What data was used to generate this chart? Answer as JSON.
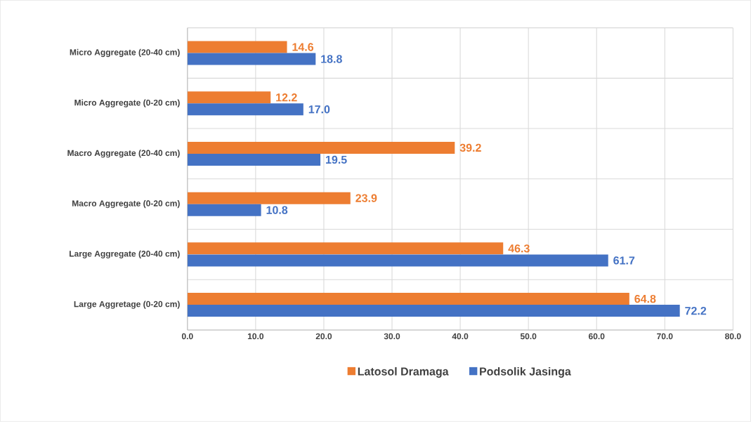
{
  "chart_data": {
    "type": "bar",
    "orientation": "horizontal",
    "categories": [
      "Micro Aggregate (20-40 cm)",
      "Micro Aggregate (0-20 cm)",
      "Macro Aggregate (20-40 cm)",
      "Macro Aggregate (0-20 cm)",
      "Large Aggregate (20-40 cm)",
      "Large Aggretage (0-20 cm)"
    ],
    "series": [
      {
        "name": "Latosol Dramaga",
        "color": "#ed7d31",
        "values": [
          14.6,
          12.2,
          39.2,
          23.9,
          46.3,
          64.8
        ],
        "value_labels": [
          "14.6",
          "12.2",
          "39.2",
          "23.9",
          "46.3",
          "64.8"
        ]
      },
      {
        "name": "Podsolik Jasinga",
        "color": "#4472c4",
        "values": [
          18.8,
          17.0,
          19.5,
          10.8,
          61.7,
          72.2
        ],
        "value_labels": [
          "18.8",
          "17.0",
          "19.5",
          "10.8",
          "61.7",
          "72.2"
        ]
      }
    ],
    "xlim": [
      0,
      80
    ],
    "xticks": [
      {
        "value": 0,
        "label": "0.0"
      },
      {
        "value": 10,
        "label": "10.0"
      },
      {
        "value": 20,
        "label": "20.0"
      },
      {
        "value": 30,
        "label": "30.0"
      },
      {
        "value": 40,
        "label": "40.0"
      },
      {
        "value": 50,
        "label": "50.0"
      },
      {
        "value": 60,
        "label": "60.0"
      },
      {
        "value": 70,
        "label": "70.0"
      },
      {
        "value": 80,
        "label": "80.0"
      }
    ],
    "grid": true,
    "legend": "bottom"
  }
}
